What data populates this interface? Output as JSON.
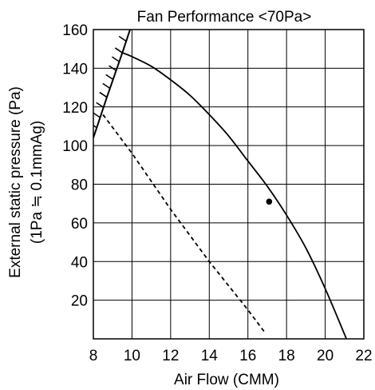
{
  "chart_data": {
    "type": "line",
    "title": "Fan Performance <70Pa>",
    "xlabel": "Air Flow (CMM)",
    "ylabel_line1": "External static pressure (Pa)",
    "ylabel_line2": "(1Pa ≒ 0.1mmAg)",
    "xlim": [
      8,
      22
    ],
    "ylim": [
      0,
      160
    ],
    "x_ticks": [
      8,
      10,
      12,
      14,
      16,
      18,
      20,
      22
    ],
    "y_ticks": [
      20,
      40,
      60,
      80,
      100,
      120,
      140,
      160
    ],
    "grid": true,
    "series": [
      {
        "style": "solid",
        "x": [
          9.5,
          10.0,
          11.0,
          12.0,
          13.0,
          14.0,
          15.0,
          16.0,
          17.0,
          18.0,
          19.0,
          20.0,
          21.1
        ],
        "y": [
          148,
          146,
          141,
          134,
          126,
          116,
          105,
          92,
          79,
          64,
          47,
          26,
          0
        ]
      },
      {
        "style": "dashed",
        "x": [
          8.5,
          10.0,
          12.0,
          14.0,
          16.0,
          16.9
        ],
        "y": [
          116,
          96,
          67,
          40,
          15,
          3
        ]
      },
      {
        "style": "hatched-boundary",
        "x": [
          8.0,
          8.7,
          9.5,
          9.9
        ],
        "y": [
          104,
          125,
          148,
          160
        ]
      }
    ],
    "marker_points": [
      {
        "x": 17.1,
        "y": 71
      }
    ],
    "colors": {
      "line": "#000000",
      "grid": "#000000",
      "background": "#ffffff"
    }
  }
}
